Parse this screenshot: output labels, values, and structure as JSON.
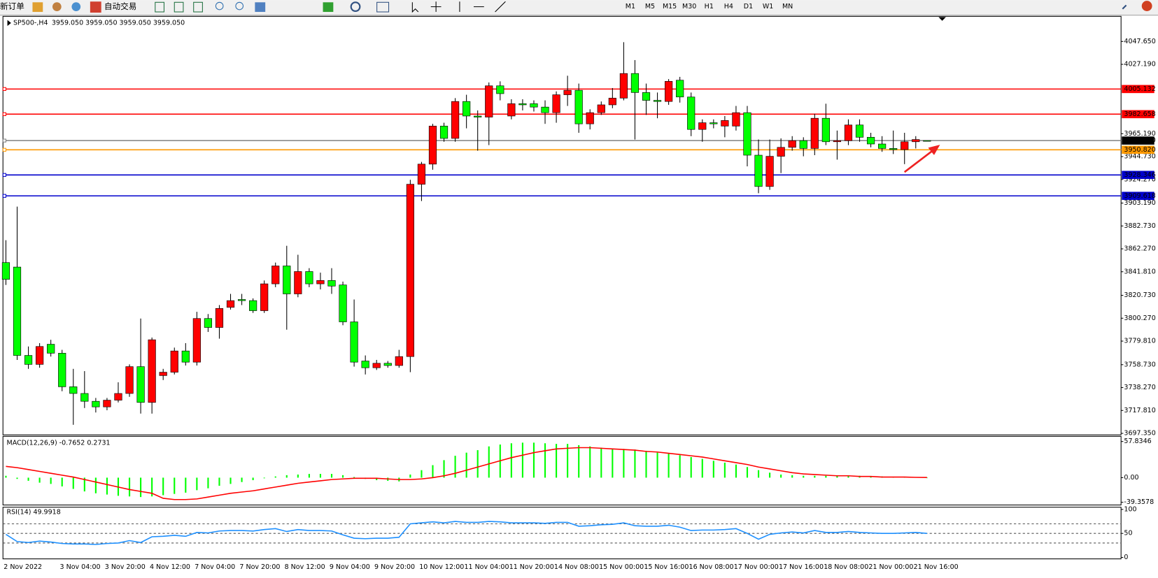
{
  "toolbar": {
    "new_order": "新订单",
    "auto_trading": "自动交易",
    "timeframes": [
      "M1",
      "M5",
      "M15",
      "M30",
      "H1",
      "H4",
      "D1",
      "W1",
      "MN"
    ]
  },
  "chart_data": [
    {
      "type": "candlestick",
      "title": "SP500-,H4",
      "subtitle": "3959.050 3959.050 3959.050 3959.050",
      "categories": [
        "2 Nov 2022",
        null,
        null,
        null,
        null,
        "3 Nov 04:00",
        null,
        null,
        null,
        "3 Nov 20:00",
        null,
        null,
        null,
        "4 Nov 12:00",
        null,
        null,
        null,
        "7 Nov 04:00",
        null,
        null,
        null,
        "7 Nov 20:00",
        null,
        null,
        null,
        "8 Nov 12:00",
        null,
        null,
        null,
        "9 Nov 04:00",
        null,
        null,
        null,
        "9 Nov 20:00",
        null,
        null,
        null,
        "10 Nov 12:00",
        null,
        null,
        null,
        "11 Nov 04:00",
        null,
        null,
        null,
        "11 Nov 20:00",
        null,
        null,
        null,
        "14 Nov 08:00",
        null,
        null,
        null,
        "15 Nov 00:00",
        null,
        null,
        null,
        "15 Nov 16:00",
        null,
        null,
        null,
        "16 Nov 08:00",
        null,
        null,
        null,
        "17 Nov 00:00",
        null,
        null,
        null,
        "17 Nov 16:00",
        null,
        null,
        null,
        "18 Nov 08:00",
        null,
        null,
        null,
        "21 Nov 00:00",
        null,
        null,
        null,
        "21 Nov 16:00",
        null
      ],
      "open": [
        3850,
        3846,
        3767,
        3759,
        3777,
        3769,
        3739,
        3733,
        3726,
        3721,
        3727,
        3733,
        3757,
        3725,
        3749,
        3752,
        3771,
        3761,
        3800,
        3792,
        3810,
        3817,
        3816,
        3807,
        3831,
        3847,
        3822,
        3842,
        3831,
        3834,
        3830,
        3797,
        3762,
        3756,
        3760,
        3758,
        3766,
        3920,
        3938,
        3972,
        3961,
        3994,
        3981,
        3980,
        4008,
        3981,
        3992,
        3992,
        3989,
        3984,
        4000,
        4004,
        3974,
        3984,
        3991,
        3997,
        4019,
        4002,
        3995,
        3994,
        4013,
        3998,
        3969,
        3975,
        3972,
        3972,
        3984,
        3946,
        3918,
        3945,
        3953,
        3959,
        3952,
        3979,
        3958,
        3959,
        3973,
        3962,
        3956,
        3952,
        3951,
        3958,
        3959.05
      ],
      "high": [
        3870,
        3900,
        3775,
        3778,
        3781,
        3772,
        3755,
        3753,
        3729,
        3729,
        3743,
        3759,
        3800,
        3783,
        3755,
        3774,
        3778,
        3806,
        3804,
        3812,
        3822,
        3822,
        3818,
        3834,
        3850,
        3865,
        3857,
        3845,
        3841,
        3845,
        3833,
        3817,
        3767,
        3763,
        3762,
        3772,
        3924,
        3940,
        3974,
        3975,
        3997,
        4000,
        3986,
        4011,
        4012,
        3996,
        3996,
        3995,
        3995,
        4003,
        4017,
        4010,
        3987,
        3994,
        4006,
        4047,
        4031,
        4010,
        4002,
        4014,
        4016,
        4002,
        3978,
        3978,
        3981,
        3990,
        3990,
        3960,
        3960,
        3961,
        3963,
        3962,
        3983,
        3992,
        3968,
        3978,
        3978,
        3966,
        3963,
        3968,
        3966,
        3963,
        3959.05
      ],
      "low": [
        3830,
        3763,
        3755,
        3756,
        3766,
        3735,
        3705,
        3720,
        3716,
        3718,
        3725,
        3730,
        3715,
        3715,
        3745,
        3750,
        3758,
        3758,
        3788,
        3782,
        3808,
        3812,
        3805,
        3805,
        3828,
        3790,
        3819,
        3828,
        3826,
        3822,
        3794,
        3757,
        3750,
        3754,
        3756,
        3756,
        3752,
        3905,
        3933,
        3958,
        3958,
        3970,
        3950,
        3955,
        3995,
        3978,
        3986,
        3985,
        3974,
        3975,
        3990,
        3966,
        3969,
        3982,
        3988,
        3995,
        3960,
        3982,
        3979,
        3991,
        3993,
        3963,
        3958,
        3970,
        3962,
        3968,
        3936,
        3912,
        3915,
        3930,
        3950,
        3945,
        3946,
        3955,
        3942,
        3955,
        3958,
        3953,
        3949,
        3947,
        3938,
        3952,
        3959.05
      ],
      "close": [
        3835,
        3767,
        3759,
        3775,
        3769,
        3739,
        3733,
        3726,
        3721,
        3727,
        3733,
        3757,
        3725,
        3781,
        3752,
        3771,
        3761,
        3800,
        3792,
        3809,
        3816,
        3816,
        3807,
        3831,
        3847,
        3822,
        3842,
        3831,
        3834,
        3829,
        3797,
        3761,
        3756,
        3760,
        3758,
        3766,
        3920,
        3938,
        3972,
        3961,
        3994,
        3981,
        3980,
        4008,
        4001,
        3992,
        3991,
        3989,
        3984,
        4000,
        4004,
        3974,
        3984,
        3991,
        3997,
        4019,
        4002,
        3995,
        3994,
        4012,
        3998,
        3969,
        3975,
        3974,
        3977,
        3984,
        3946,
        3918,
        3945,
        3953,
        3959,
        3952,
        3979,
        3958,
        3959,
        3973,
        3962,
        3956,
        3952,
        3951,
        3958,
        3960,
        3959.05
      ],
      "up_color": "#ff0000",
      "down_color": "#00ff00",
      "ylim": [
        3696,
        4070.1
      ],
      "yticks": [
        {
          "value": 4047.65,
          "label": "4047.650"
        },
        {
          "value": 4027.19,
          "label": "4027.190"
        },
        {
          "value": 3965.19,
          "label": "3965.190"
        },
        {
          "value": 3944.73,
          "label": "3944.730"
        },
        {
          "value": 3924.27,
          "label": "3924.270"
        },
        {
          "value": 3903.19,
          "label": "3903.190"
        },
        {
          "value": 3882.73,
          "label": "3882.730"
        },
        {
          "value": 3862.27,
          "label": "3862.270"
        },
        {
          "value": 3841.81,
          "label": "3841.810"
        },
        {
          "value": 3820.73,
          "label": "3820.730"
        },
        {
          "value": 3800.27,
          "label": "3800.270"
        },
        {
          "value": 3779.81,
          "label": "3779.810"
        },
        {
          "value": 3758.73,
          "label": "3758.730"
        },
        {
          "value": 3738.27,
          "label": "3738.270"
        },
        {
          "value": 3717.81,
          "label": "3717.810"
        },
        {
          "value": 3697.35,
          "label": "3697.350"
        }
      ],
      "levels": [
        {
          "value": 4005.132,
          "color": "#ff0000"
        },
        {
          "value": 3982.658,
          "color": "#ff0000"
        },
        {
          "value": 3959.05,
          "label": "3959.050",
          "color": "#808080"
        },
        {
          "value": 3950.82,
          "label": "3950.820",
          "color": "#ff9900"
        },
        {
          "value": 3928.346,
          "color": "#0000cc"
        },
        {
          "value": 3909.618,
          "color": "#0000cc"
        }
      ]
    },
    {
      "type": "macd",
      "title": "MACD(12,26,9) -0.7652 0.2731",
      "histogram": [
        3,
        -2,
        -5,
        -8,
        -10,
        -14,
        -18,
        -22,
        -25,
        -27,
        -29,
        -30,
        -31,
        -30,
        -28,
        -26,
        -24,
        -20,
        -17,
        -13,
        -10,
        -7,
        -4,
        -1,
        2,
        4,
        5,
        6,
        6,
        6,
        4,
        1,
        -2,
        -4,
        -5,
        -6,
        5,
        12,
        20,
        28,
        35,
        40,
        44,
        50,
        53,
        55,
        56,
        56,
        55,
        54,
        54,
        52,
        50,
        48,
        46,
        46,
        45,
        43,
        40,
        39,
        36,
        33,
        30,
        27,
        24,
        21,
        17,
        12,
        8,
        5,
        4,
        3,
        3,
        3,
        3,
        3,
        3,
        2,
        2,
        1,
        1,
        1,
        -0.7652
      ],
      "signal": [
        18,
        16,
        13,
        10,
        7,
        4,
        1,
        -3,
        -7,
        -11,
        -15,
        -19,
        -22,
        -25,
        -33,
        -35,
        -35,
        -34,
        -31,
        -28,
        -25,
        -23,
        -21,
        -18,
        -15,
        -12,
        -9,
        -7,
        -5,
        -3,
        -2,
        -1,
        -1,
        -1,
        -2,
        -3,
        -3,
        -2,
        0,
        3,
        7,
        12,
        17,
        22,
        27,
        32,
        36,
        40,
        43,
        46,
        47,
        48,
        48,
        47,
        46,
        45,
        44,
        42,
        41,
        39,
        37,
        35,
        33,
        30,
        27,
        24,
        21,
        17,
        14,
        11,
        8,
        6,
        5,
        4,
        3,
        3,
        2,
        2,
        1,
        1,
        1,
        0.5,
        0.2731
      ],
      "histogram_color": "#00ff00",
      "signal_color": "#ff0000",
      "ylim": [
        -43.7,
        64.9
      ],
      "yticks": [
        57.8346,
        {
          "value": 0,
          "label": "0.00"
        },
        -39.3578
      ]
    },
    {
      "type": "line",
      "title": "RSI(14) 49.9918",
      "values": [
        48,
        33,
        31,
        34,
        32,
        29,
        28,
        28,
        27,
        29,
        30,
        35,
        31,
        43,
        44,
        46,
        44,
        52,
        51,
        55,
        56,
        56,
        55,
        58,
        60,
        54,
        58,
        56,
        56,
        55,
        47,
        40,
        39,
        40,
        40,
        42,
        70,
        72,
        74,
        72,
        75,
        73,
        73,
        75,
        74,
        72,
        72,
        72,
        71,
        73,
        73,
        65,
        66,
        68,
        69,
        72,
        66,
        65,
        65,
        67,
        63,
        56,
        57,
        57,
        58,
        60,
        50,
        38,
        48,
        51,
        53,
        51,
        56,
        52,
        52,
        54,
        52,
        51,
        50,
        50,
        51,
        52,
        49.9918
      ],
      "color": "#1e90ff",
      "ylim": [
        0,
        100
      ],
      "yticks": [
        100,
        50,
        0
      ],
      "levels": [
        70,
        50,
        30
      ]
    }
  ]
}
